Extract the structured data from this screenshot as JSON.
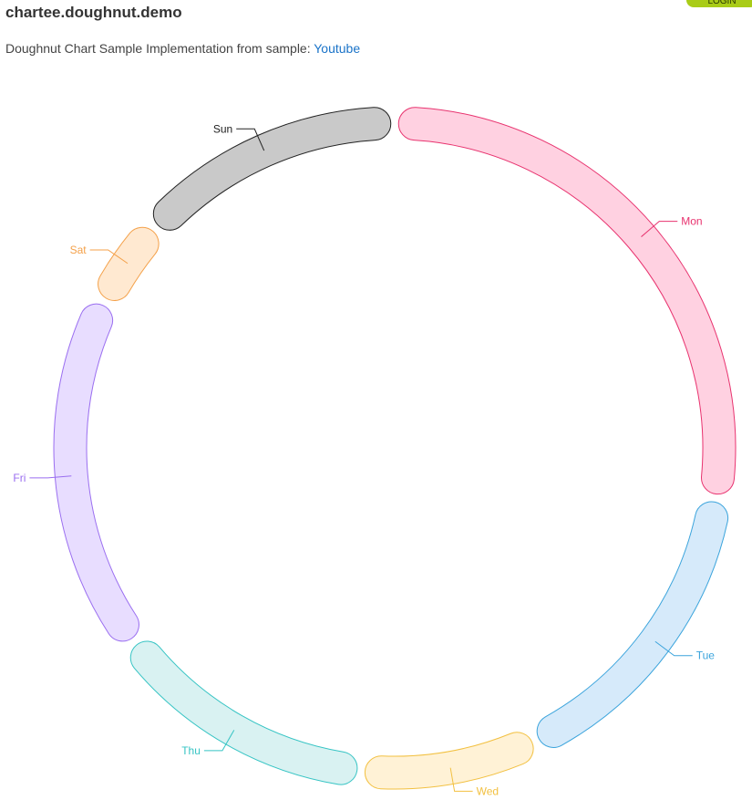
{
  "header": {
    "title": "chartee.doughnut.demo",
    "subtitle_prefix": "Doughnut Chart Sample Implementation from sample: ",
    "link_text": "Youtube",
    "corner_badge": "LOGIN",
    "corner_badge_color": "#a9cc17"
  },
  "chart_data": {
    "type": "doughnut",
    "title": "",
    "categories": [
      "Mon",
      "Tue",
      "Wed",
      "Thu",
      "Fri",
      "Sat",
      "Sun"
    ],
    "values": [
      25,
      14,
      8,
      12,
      16,
      4,
      12
    ],
    "series": [
      {
        "label": "Mon",
        "value": 25,
        "stroke": "#e8336f",
        "fill": "#ffd1e1"
      },
      {
        "label": "Tue",
        "value": 14,
        "stroke": "#3ba4dc",
        "fill": "#d6eafa"
      },
      {
        "label": "Wed",
        "value": 8,
        "stroke": "#f2c040",
        "fill": "#fff2d6"
      },
      {
        "label": "Thu",
        "value": 12,
        "stroke": "#36c4c4",
        "fill": "#d9f2f2"
      },
      {
        "label": "Fri",
        "value": 16,
        "stroke": "#9a6ef0",
        "fill": "#e8ddff"
      },
      {
        "label": "Sat",
        "value": 4,
        "stroke": "#f4a14a",
        "fill": "#ffe9d1"
      },
      {
        "label": "Sun",
        "value": 12,
        "stroke": "#222222",
        "fill": "#c9c9c9"
      }
    ],
    "legend": "none"
  }
}
